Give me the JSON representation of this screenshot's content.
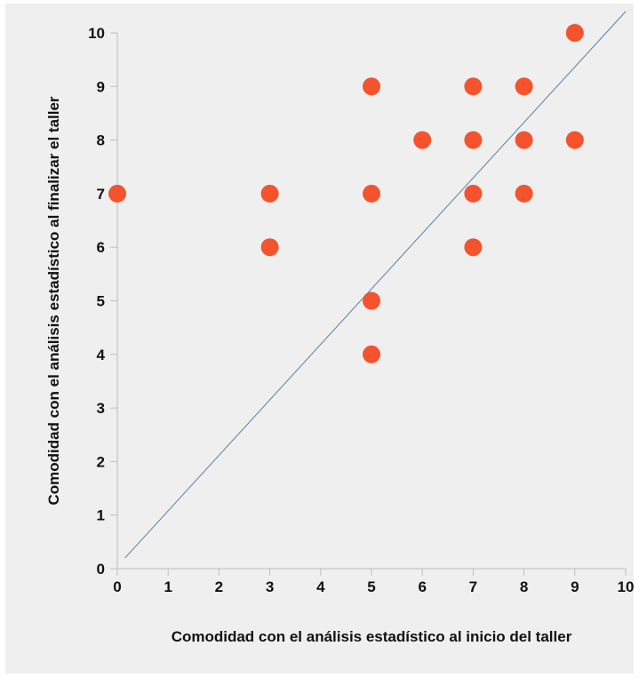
{
  "chart_data": {
    "type": "scatter",
    "title": "",
    "xlabel": "Comodidad con el análisis estadístico al inicio del taller",
    "ylabel": "Comodidad con el análisis estadístico al finalizar el taller",
    "xlim": [
      0,
      10
    ],
    "ylim": [
      0,
      10
    ],
    "x_ticks": [
      "0",
      "1",
      "2",
      "3",
      "4",
      "5",
      "6",
      "7",
      "8",
      "9",
      "10"
    ],
    "y_ticks": [
      "0",
      "1",
      "2",
      "3",
      "4",
      "5",
      "6",
      "7",
      "8",
      "9",
      "10"
    ],
    "grid": false,
    "legend": "none",
    "point_color": "#f4532e",
    "line_color": "#5a7fa8",
    "reference_line": {
      "x": [
        0.15,
        10
      ],
      "y": [
        0.2,
        10.4
      ]
    },
    "points": [
      {
        "x": 0,
        "y": 7
      },
      {
        "x": 3,
        "y": 7
      },
      {
        "x": 3,
        "y": 6
      },
      {
        "x": 5,
        "y": 9
      },
      {
        "x": 5,
        "y": 7
      },
      {
        "x": 5,
        "y": 5
      },
      {
        "x": 5,
        "y": 4
      },
      {
        "x": 6,
        "y": 8
      },
      {
        "x": 7,
        "y": 9
      },
      {
        "x": 7,
        "y": 8
      },
      {
        "x": 7,
        "y": 7
      },
      {
        "x": 7,
        "y": 6
      },
      {
        "x": 8,
        "y": 9
      },
      {
        "x": 8,
        "y": 8
      },
      {
        "x": 8,
        "y": 7
      },
      {
        "x": 9,
        "y": 10
      },
      {
        "x": 9,
        "y": 8
      }
    ]
  }
}
